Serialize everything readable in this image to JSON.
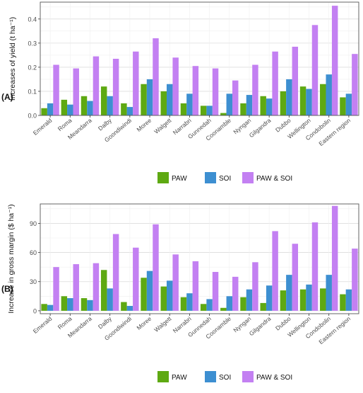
{
  "panels": [
    {
      "label": "(A)"
    },
    {
      "label": "(B)"
    }
  ],
  "colors": {
    "PAW": "#5ea912",
    "SOI": "#3d8fd1",
    "PAW & SOI": "#c380f2",
    "grid_major": "#dcdcdc",
    "grid_minor": "#efefef",
    "frame": "#555555"
  },
  "chart_data": [
    {
      "type": "bar",
      "ylabel": "Increases of yield (t ha⁻¹)",
      "ylim": [
        0,
        0.47
      ],
      "yticks": [
        "0.0",
        "0.1",
        "0.2",
        "0.3",
        "0.4"
      ],
      "ytick_values": [
        0,
        0.1,
        0.2,
        0.3,
        0.4
      ],
      "grid": true,
      "legend": "below",
      "categories": [
        "Emerald",
        "Roma",
        "Meandarra",
        "Dalby",
        "Goondiwindi",
        "Moree",
        "Walgett",
        "Narrabri",
        "Gunnedah",
        "Coonamble",
        "Nyngan",
        "Gilgandra",
        "Dubbo",
        "Wellington",
        "Condobolin",
        "Eastern region"
      ],
      "series": [
        {
          "name": "PAW",
          "values": [
            0.03,
            0.065,
            0.08,
            0.12,
            0.05,
            0.13,
            0.1,
            0.05,
            0.04,
            0.01,
            0.05,
            0.08,
            0.1,
            0.12,
            0.13,
            0.075
          ]
        },
        {
          "name": "SOI",
          "values": [
            0.05,
            0.045,
            0.06,
            0.08,
            0.035,
            0.15,
            0.13,
            0.09,
            0.04,
            0.09,
            0.085,
            0.07,
            0.15,
            0.11,
            0.17,
            0.09
          ]
        },
        {
          "name": "PAW & SOI",
          "values": [
            0.21,
            0.195,
            0.245,
            0.235,
            0.265,
            0.32,
            0.24,
            0.205,
            0.195,
            0.145,
            0.21,
            0.265,
            0.285,
            0.375,
            0.455,
            0.255
          ]
        }
      ]
    },
    {
      "type": "bar",
      "ylabel": "Increase in gross margin ($ ha⁻¹)",
      "ylim": [
        -3,
        110
      ],
      "yticks": [
        "0",
        "30",
        "60",
        "90"
      ],
      "ytick_values": [
        0,
        30,
        60,
        90
      ],
      "grid": true,
      "legend": "below",
      "categories": [
        "Emerald",
        "Roma",
        "Meandarra",
        "Dalby",
        "Goondiwindi",
        "Moree",
        "Walgett",
        "Narrabri",
        "Gunnedah",
        "Coonamble",
        "Nyngan",
        "Gilgandra",
        "Dubbo",
        "Wellington",
        "Condobolin",
        "Eastern region"
      ],
      "series": [
        {
          "name": "PAW",
          "values": [
            7,
            15,
            13,
            42,
            9,
            34,
            25,
            14,
            7,
            3,
            14,
            8,
            21,
            22,
            23,
            17
          ]
        },
        {
          "name": "SOI",
          "values": [
            6,
            13,
            11,
            23,
            5,
            41,
            31,
            18,
            12,
            15,
            22,
            26,
            37,
            27,
            37,
            22
          ]
        },
        {
          "name": "PAW & SOI",
          "values": [
            45,
            48,
            49,
            79,
            65,
            89,
            58,
            51,
            40,
            35,
            50,
            82,
            69,
            91,
            108,
            64
          ]
        }
      ]
    }
  ],
  "legends": [
    {
      "items": [
        "PAW",
        "SOI",
        "PAW & SOI"
      ]
    },
    {
      "items": [
        "PAW",
        "SOI",
        "PAW & SOI"
      ]
    }
  ]
}
